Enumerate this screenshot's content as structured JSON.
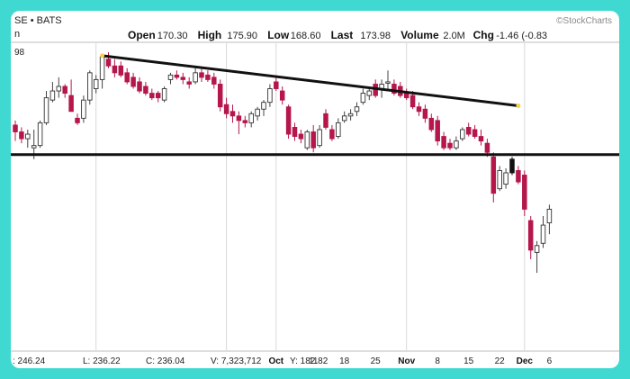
{
  "colors": {
    "background_border": "#3fd9d2",
    "up_candle": "#ffffff",
    "down_candle": "#b5174a",
    "grid": "#d9d9d9",
    "trendline": "#111111",
    "highlight_candle": "#111111",
    "marker": "#f2d24a"
  },
  "header": {
    "symbol": "SE • BATS",
    "left_label": "n",
    "brand": "©StockCharts",
    "stats": [
      {
        "label": "Open",
        "value": "170.30"
      },
      {
        "label": "High",
        "value": "175.90"
      },
      {
        "label": "Low",
        "value": "168.60"
      },
      {
        "label": "Last",
        "value": "173.98"
      },
      {
        "label": "Volume",
        "value": "2.0M"
      },
      {
        "label": "Chg",
        "value": "-1.46 (-0.83"
      }
    ]
  },
  "footer": {
    "ohlc_summary": [
      {
        "key": "summary_1",
        "text": ": 246.24"
      },
      {
        "key": "summary_2",
        "text": "L: 236.22"
      },
      {
        "key": "summary_3",
        "text": "C: 236.04"
      },
      {
        "key": "summary_4",
        "text": "V: 7,323,712"
      },
      {
        "key": "summary_5",
        "text": "Y: 182.82"
      }
    ]
  },
  "chart_data": {
    "type": "candlestick",
    "y_tick_label_partial": "98",
    "x_tick_labels": [
      {
        "label": "Oct",
        "bold": true,
        "index": 42
      },
      {
        "label": "11",
        "bold": false,
        "index": 48
      },
      {
        "label": "18",
        "bold": false,
        "index": 53
      },
      {
        "label": "25",
        "bold": false,
        "index": 58
      },
      {
        "label": "Nov",
        "bold": true,
        "index": 63
      },
      {
        "label": "8",
        "bold": false,
        "index": 68
      },
      {
        "label": "15",
        "bold": false,
        "index": 73
      },
      {
        "label": "22",
        "bold": false,
        "index": 78
      },
      {
        "label": "Dec",
        "bold": true,
        "index": 82
      },
      {
        "label": "6",
        "bold": false,
        "index": 86
      }
    ],
    "ylim": [
      165,
      300
    ],
    "support_level": 251,
    "trendline": {
      "start_index": 14,
      "start_value": 294.5,
      "end_index": 81,
      "end_value": 272.5
    },
    "highlight_index": 80,
    "candles": [
      {
        "o": 264,
        "h": 266,
        "l": 257,
        "c": 261
      },
      {
        "o": 261,
        "h": 263,
        "l": 256,
        "c": 258
      },
      {
        "o": 258,
        "h": 262,
        "l": 254,
        "c": 260
      },
      {
        "o": 254,
        "h": 262,
        "l": 249,
        "c": 255
      },
      {
        "o": 255,
        "h": 266,
        "l": 254,
        "c": 265
      },
      {
        "o": 265,
        "h": 279,
        "l": 264,
        "c": 276
      },
      {
        "o": 275,
        "h": 283,
        "l": 274,
        "c": 279
      },
      {
        "o": 279,
        "h": 285,
        "l": 276,
        "c": 281
      },
      {
        "o": 281,
        "h": 282,
        "l": 276,
        "c": 278
      },
      {
        "o": 277,
        "h": 284,
        "l": 270,
        "c": 270
      },
      {
        "o": 267,
        "h": 269,
        "l": 264,
        "c": 265
      },
      {
        "o": 267,
        "h": 277,
        "l": 265,
        "c": 275
      },
      {
        "o": 275,
        "h": 288,
        "l": 273,
        "c": 287
      },
      {
        "o": 280,
        "h": 286,
        "l": 278,
        "c": 284
      },
      {
        "o": 284,
        "h": 295,
        "l": 280,
        "c": 294
      },
      {
        "o": 293,
        "h": 296,
        "l": 289,
        "c": 290
      },
      {
        "o": 290,
        "h": 293,
        "l": 285,
        "c": 287
      },
      {
        "o": 290,
        "h": 292,
        "l": 285,
        "c": 286
      },
      {
        "o": 287,
        "h": 289,
        "l": 282,
        "c": 283
      },
      {
        "o": 285,
        "h": 287,
        "l": 280,
        "c": 281
      },
      {
        "o": 283,
        "h": 285,
        "l": 278,
        "c": 279
      },
      {
        "o": 281,
        "h": 283,
        "l": 277,
        "c": 278
      },
      {
        "o": 278,
        "h": 280,
        "l": 275,
        "c": 276
      },
      {
        "o": 278,
        "h": 279,
        "l": 274,
        "c": 276
      },
      {
        "o": 275,
        "h": 281,
        "l": 274,
        "c": 280
      },
      {
        "o": 284,
        "h": 287,
        "l": 282,
        "c": 286
      },
      {
        "o": 286,
        "h": 288,
        "l": 284,
        "c": 285
      },
      {
        "o": 285,
        "h": 287,
        "l": 282,
        "c": 284
      },
      {
        "o": 283,
        "h": 285,
        "l": 280,
        "c": 282
      },
      {
        "o": 283,
        "h": 289,
        "l": 282,
        "c": 287
      },
      {
        "o": 287,
        "h": 289,
        "l": 283,
        "c": 285
      },
      {
        "o": 286,
        "h": 288,
        "l": 283,
        "c": 284
      },
      {
        "o": 285,
        "h": 287,
        "l": 280,
        "c": 282
      },
      {
        "o": 282,
        "h": 284,
        "l": 270,
        "c": 272
      },
      {
        "o": 273,
        "h": 276,
        "l": 267,
        "c": 269
      },
      {
        "o": 270,
        "h": 273,
        "l": 265,
        "c": 268
      },
      {
        "o": 268,
        "h": 270,
        "l": 260,
        "c": 266
      },
      {
        "o": 266,
        "h": 268,
        "l": 263,
        "c": 265
      },
      {
        "o": 265,
        "h": 270,
        "l": 263,
        "c": 269
      },
      {
        "o": 268,
        "h": 272,
        "l": 266,
        "c": 271
      },
      {
        "o": 271,
        "h": 275,
        "l": 268,
        "c": 274
      },
      {
        "o": 274,
        "h": 282,
        "l": 272,
        "c": 280
      },
      {
        "o": 283,
        "h": 285,
        "l": 279,
        "c": 280
      },
      {
        "o": 279,
        "h": 281,
        "l": 273,
        "c": 275
      },
      {
        "o": 272,
        "h": 273,
        "l": 258,
        "c": 260
      },
      {
        "o": 263,
        "h": 265,
        "l": 257,
        "c": 259
      },
      {
        "o": 260,
        "h": 262,
        "l": 256,
        "c": 258
      },
      {
        "o": 254,
        "h": 262,
        "l": 253,
        "c": 261
      },
      {
        "o": 261,
        "h": 264,
        "l": 252,
        "c": 254
      },
      {
        "o": 255,
        "h": 264,
        "l": 254,
        "c": 262
      },
      {
        "o": 269,
        "h": 271,
        "l": 262,
        "c": 263
      },
      {
        "o": 262,
        "h": 264,
        "l": 257,
        "c": 258
      },
      {
        "o": 259,
        "h": 267,
        "l": 258,
        "c": 265
      },
      {
        "o": 266,
        "h": 270,
        "l": 265,
        "c": 268
      },
      {
        "o": 268,
        "h": 271,
        "l": 266,
        "c": 269
      },
      {
        "o": 270,
        "h": 274,
        "l": 268,
        "c": 272
      },
      {
        "o": 274,
        "h": 280,
        "l": 273,
        "c": 278
      },
      {
        "o": 277,
        "h": 281,
        "l": 275,
        "c": 279
      },
      {
        "o": 282,
        "h": 284,
        "l": 276,
        "c": 277
      },
      {
        "o": 280,
        "h": 284,
        "l": 276,
        "c": 282
      },
      {
        "o": 283,
        "h": 288,
        "l": 279,
        "c": 283
      },
      {
        "o": 282,
        "h": 284,
        "l": 277,
        "c": 278
      },
      {
        "o": 281,
        "h": 283,
        "l": 276,
        "c": 277
      },
      {
        "o": 278,
        "h": 280,
        "l": 275,
        "c": 276
      },
      {
        "o": 277,
        "h": 279,
        "l": 271,
        "c": 272
      },
      {
        "o": 272,
        "h": 274,
        "l": 268,
        "c": 270
      },
      {
        "o": 271,
        "h": 273,
        "l": 265,
        "c": 267
      },
      {
        "o": 267,
        "h": 269,
        "l": 261,
        "c": 262
      },
      {
        "o": 266,
        "h": 268,
        "l": 255,
        "c": 257
      },
      {
        "o": 259,
        "h": 261,
        "l": 253,
        "c": 254
      },
      {
        "o": 256,
        "h": 258,
        "l": 253,
        "c": 254
      },
      {
        "o": 254,
        "h": 259,
        "l": 253,
        "c": 257
      },
      {
        "o": 258,
        "h": 263,
        "l": 257,
        "c": 262
      },
      {
        "o": 263,
        "h": 265,
        "l": 259,
        "c": 260
      },
      {
        "o": 262,
        "h": 264,
        "l": 258,
        "c": 259
      },
      {
        "o": 259,
        "h": 262,
        "l": 255,
        "c": 257
      },
      {
        "o": 256,
        "h": 258,
        "l": 250,
        "c": 252
      },
      {
        "o": 250,
        "h": 252,
        "l": 230,
        "c": 234
      },
      {
        "o": 236,
        "h": 246,
        "l": 235,
        "c": 244
      },
      {
        "o": 238,
        "h": 245,
        "l": 236,
        "c": 243
      },
      {
        "o": 249,
        "h": 250,
        "l": 242,
        "c": 243
      },
      {
        "o": 244,
        "h": 246,
        "l": 238,
        "c": 239
      },
      {
        "o": 242,
        "h": 244,
        "l": 224,
        "c": 227
      },
      {
        "o": 222,
        "h": 224,
        "l": 205,
        "c": 209
      },
      {
        "o": 208,
        "h": 213,
        "l": 199,
        "c": 211
      },
      {
        "o": 212,
        "h": 224,
        "l": 210,
        "c": 220
      },
      {
        "o": 221,
        "h": 229,
        "l": 216,
        "c": 227
      }
    ]
  }
}
